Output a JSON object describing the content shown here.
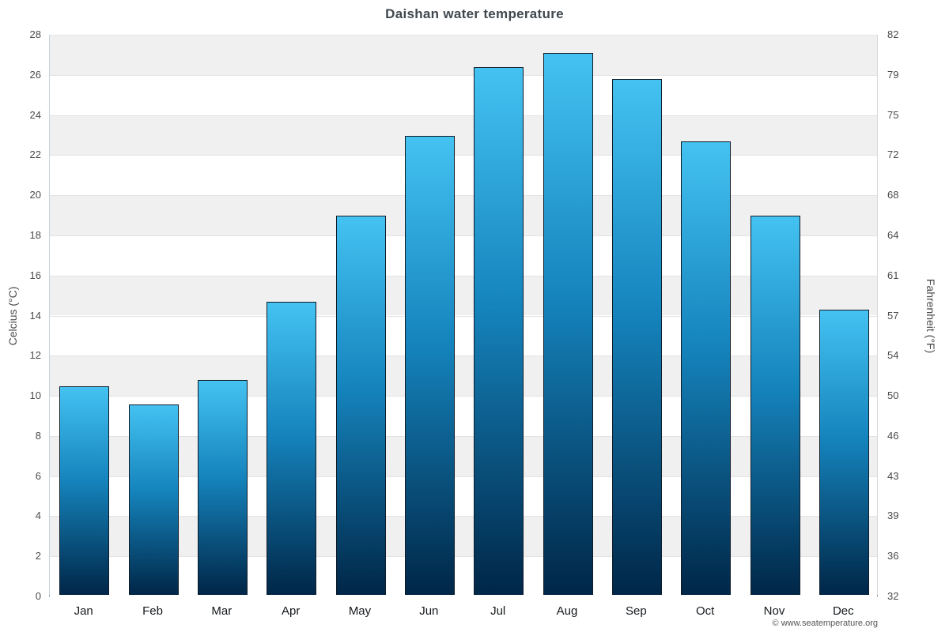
{
  "chart_data": {
    "type": "bar",
    "title": "Daishan water temperature",
    "categories": [
      "Jan",
      "Feb",
      "Mar",
      "Apr",
      "May",
      "Jun",
      "Jul",
      "Aug",
      "Sep",
      "Oct",
      "Nov",
      "Dec"
    ],
    "values": [
      10.4,
      9.5,
      10.7,
      14.6,
      18.9,
      22.9,
      26.3,
      27.0,
      25.7,
      22.6,
      18.9,
      14.2
    ],
    "xlabel": "",
    "ylabel_left": "Celcius (°C)",
    "ylabel_right": "Fahrenheit (°F)",
    "ylim": [
      0,
      28
    ],
    "celsius_ticks": [
      0,
      2,
      4,
      6,
      8,
      10,
      12,
      14,
      16,
      18,
      20,
      22,
      24,
      26,
      28
    ],
    "fahrenheit_ticks": [
      32,
      36,
      39,
      43,
      46,
      50,
      54,
      57,
      61,
      64,
      68,
      72,
      75,
      79,
      82
    ],
    "legend": "none",
    "grid": true,
    "band_color": "#f0f0f0",
    "bar_gradient_top": "#44c2f1",
    "bar_gradient_mid": "#1584bd",
    "bar_gradient_bottom": "#002647"
  },
  "footer": {
    "credit": "© www.seatemperature.org"
  }
}
